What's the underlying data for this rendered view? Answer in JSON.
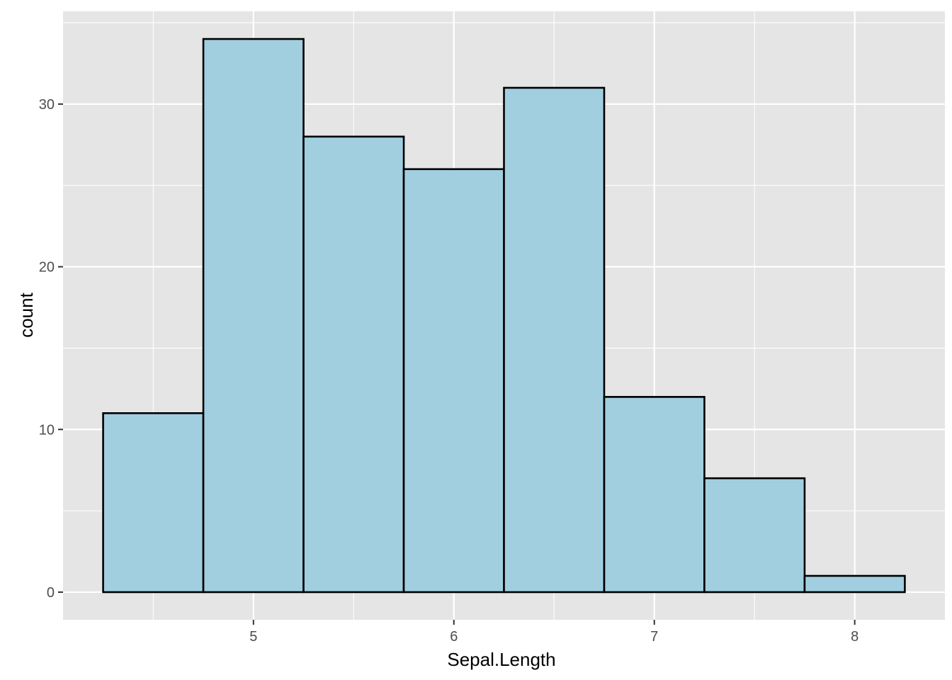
{
  "chart_data": {
    "type": "bar",
    "subtype": "histogram",
    "title": "",
    "xlabel": "Sepal.Length",
    "ylabel": "count",
    "bins": [
      {
        "x_min": 4.25,
        "x_max": 4.75,
        "count": 11
      },
      {
        "x_min": 4.75,
        "x_max": 5.25,
        "count": 34
      },
      {
        "x_min": 5.25,
        "x_max": 5.75,
        "count": 28
      },
      {
        "x_min": 5.75,
        "x_max": 6.25,
        "count": 26
      },
      {
        "x_min": 6.25,
        "x_max": 6.75,
        "count": 31
      },
      {
        "x_min": 6.75,
        "x_max": 7.25,
        "count": 12
      },
      {
        "x_min": 7.25,
        "x_max": 7.75,
        "count": 7
      },
      {
        "x_min": 7.75,
        "x_max": 8.25,
        "count": 1
      }
    ],
    "xlim": [
      4.05,
      8.45
    ],
    "ylim": [
      -1.7,
      35.7
    ],
    "x_ticks": [
      5,
      6,
      7,
      8
    ],
    "x_minor": [
      4.5,
      5.5,
      6.5,
      7.5
    ],
    "y_ticks": [
      0,
      10,
      20,
      30
    ],
    "y_minor": [
      5,
      15,
      25,
      35
    ],
    "grid": true,
    "legend": "none",
    "colors": {
      "panel_background": "#e5e5e5",
      "grid_line": "#ffffff",
      "bar_fill": "#a1cfe0",
      "bar_outline": "#000000",
      "tick_text": "#4d4d4d",
      "tick_mark": "#333333"
    }
  }
}
